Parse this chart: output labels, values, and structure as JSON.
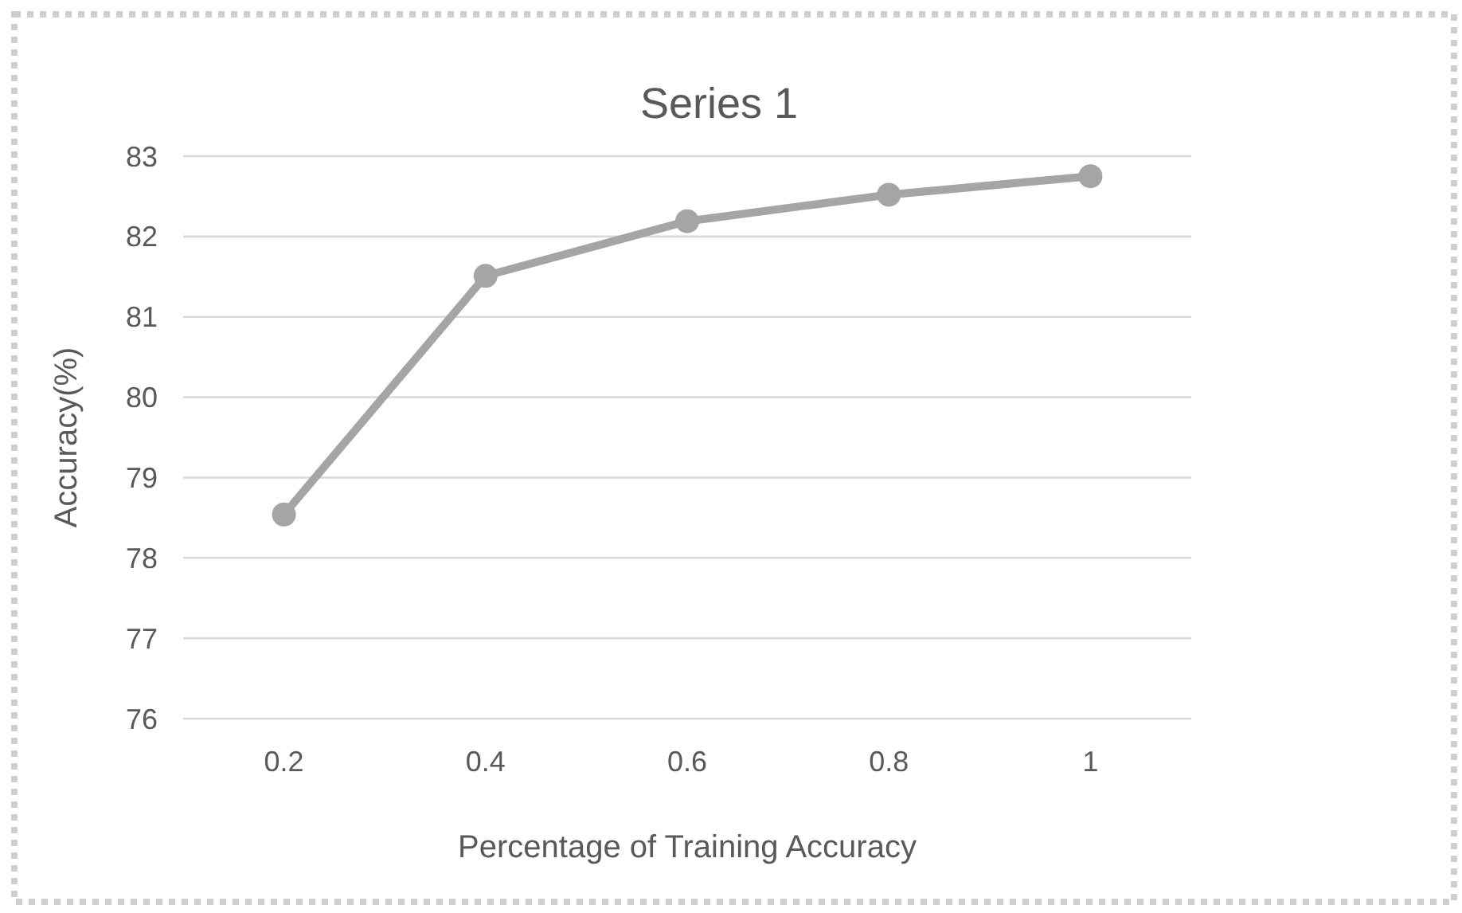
{
  "chart_data": {
    "type": "line",
    "title": "Series 1",
    "xlabel": "Percentage of Training Accuracy",
    "ylabel": "Accuracy(%)",
    "categories": [
      "0.2",
      "0.4",
      "0.6",
      "0.8",
      "1"
    ],
    "series": [
      {
        "color": "#a5a5a5",
        "values": [
          78.54,
          81.51,
          82.19,
          82.52,
          82.75
        ]
      }
    ],
    "ylim": [
      76,
      83
    ],
    "yticks": [
      76,
      77,
      78,
      79,
      80,
      81,
      82,
      83
    ],
    "grid": "y",
    "marker": "circle",
    "line_style": "solid"
  }
}
